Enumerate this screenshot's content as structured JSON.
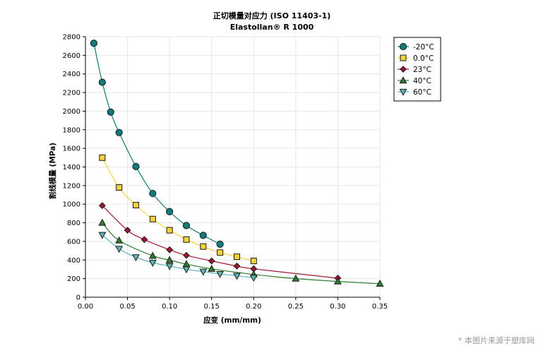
{
  "chart_data": {
    "type": "line",
    "title": "正切模量对应力 (ISO 11403-1)",
    "subtitle": "Elastollan® R 1000",
    "xlabel": "应变 (mm/mm)",
    "ylabel": "割线模量 (MPa)",
    "xlim": [
      0,
      0.35
    ],
    "ylim": [
      0,
      2800
    ],
    "x_ticks": [
      "0.00",
      "0.05",
      "0.10",
      "0.15",
      "0.20",
      "0.25",
      "0.30",
      "0.35"
    ],
    "y_ticks": [
      "0",
      "200",
      "400",
      "600",
      "800",
      "1000",
      "1200",
      "1400",
      "1600",
      "1800",
      "2000",
      "2200",
      "2400",
      "2600",
      "2800"
    ],
    "grid": true,
    "legend_position": "top-right",
    "series": [
      {
        "name": "-20°C",
        "color": "#0e7c7b",
        "marker": "circle",
        "points": [
          [
            0.01,
            2730
          ],
          [
            0.02,
            2310
          ],
          [
            0.03,
            1990
          ],
          [
            0.04,
            1770
          ],
          [
            0.06,
            1405
          ],
          [
            0.08,
            1115
          ],
          [
            0.1,
            920
          ],
          [
            0.12,
            770
          ],
          [
            0.14,
            665
          ],
          [
            0.16,
            570
          ]
        ]
      },
      {
        "name": "0.0°C",
        "color": "#f5d23c",
        "marker": "square",
        "points": [
          [
            0.02,
            1500
          ],
          [
            0.04,
            1180
          ],
          [
            0.06,
            990
          ],
          [
            0.08,
            840
          ],
          [
            0.1,
            720
          ],
          [
            0.12,
            620
          ],
          [
            0.14,
            545
          ],
          [
            0.16,
            480
          ],
          [
            0.18,
            435
          ],
          [
            0.2,
            390
          ]
        ]
      },
      {
        "name": "23°C",
        "color": "#a01830",
        "marker": "diamond",
        "points": [
          [
            0.02,
            985
          ],
          [
            0.05,
            720
          ],
          [
            0.07,
            620
          ],
          [
            0.1,
            510
          ],
          [
            0.12,
            450
          ],
          [
            0.15,
            390
          ],
          [
            0.18,
            335
          ],
          [
            0.2,
            305
          ],
          [
            0.3,
            205
          ]
        ]
      },
      {
        "name": "40°C",
        "color": "#2e7d32",
        "marker": "triangle-up",
        "points": [
          [
            0.02,
            800
          ],
          [
            0.04,
            610
          ],
          [
            0.08,
            445
          ],
          [
            0.1,
            400
          ],
          [
            0.12,
            355
          ],
          [
            0.15,
            305
          ],
          [
            0.2,
            245
          ],
          [
            0.25,
            200
          ],
          [
            0.3,
            170
          ],
          [
            0.35,
            145
          ]
        ]
      },
      {
        "name": "60°C",
        "color": "#5fb3b3",
        "marker": "triangle-down",
        "points": [
          [
            0.02,
            670
          ],
          [
            0.04,
            520
          ],
          [
            0.06,
            430
          ],
          [
            0.08,
            370
          ],
          [
            0.1,
            335
          ],
          [
            0.12,
            300
          ],
          [
            0.14,
            275
          ],
          [
            0.16,
            250
          ],
          [
            0.18,
            230
          ],
          [
            0.2,
            210
          ]
        ]
      }
    ]
  },
  "watermark": "* 本图片来源于塑库网"
}
